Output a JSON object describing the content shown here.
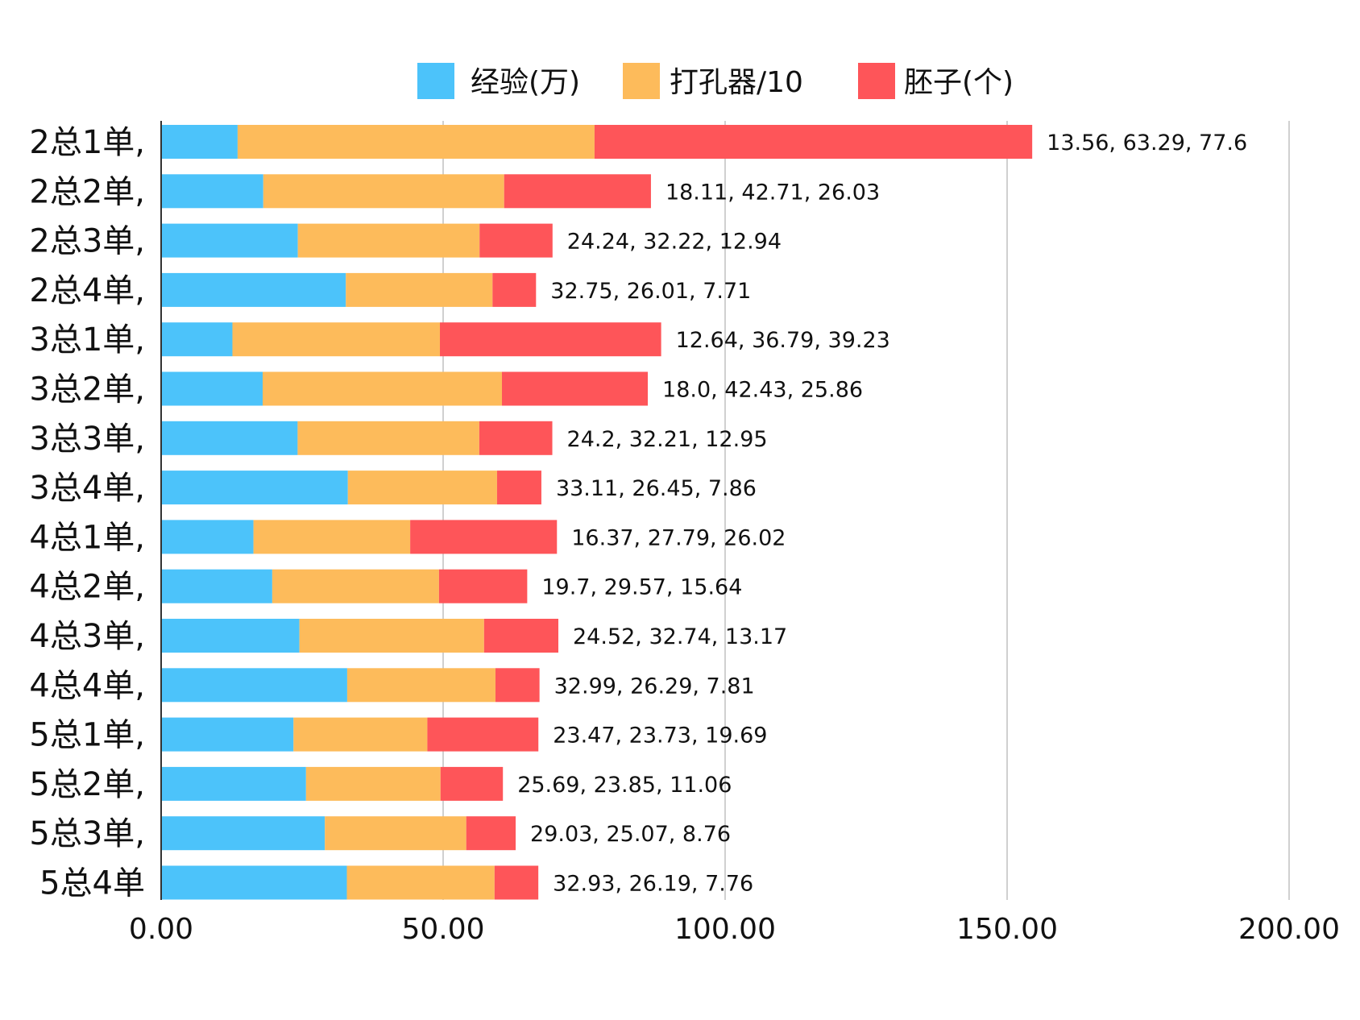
{
  "chart_data": {
    "type": "bar",
    "orientation": "horizontal",
    "stacked": true,
    "title": "",
    "xlabel": "",
    "ylabel": "",
    "xlim": [
      0,
      200
    ],
    "xticks": [
      0,
      50,
      100,
      150,
      200
    ],
    "xtick_labels": [
      "0.00",
      "50.00",
      "100.00",
      "150.00",
      "200.00"
    ],
    "grid": true,
    "legend_position": "top",
    "categories": [
      "2总1单,",
      "2总2单,",
      "2总3单,",
      "2总4单,",
      "3总1单,",
      "3总2单,",
      "3总3单,",
      "3总4单,",
      "4总1单,",
      "4总2单,",
      "4总3单,",
      "4总4单,",
      "5总1单,",
      "5总2单,",
      "5总3单,",
      "5总4单"
    ],
    "series": [
      {
        "name": "经验(万)",
        "color": "#4cc3fa",
        "values": [
          13.56,
          18.11,
          24.24,
          32.75,
          12.64,
          18.0,
          24.2,
          33.11,
          16.37,
          19.7,
          24.52,
          32.99,
          23.47,
          25.69,
          29.03,
          32.93
        ]
      },
      {
        "name": "打孔器/10",
        "color": "#fdbb5b",
        "values": [
          63.29,
          42.71,
          32.22,
          26.01,
          36.79,
          42.43,
          32.21,
          26.45,
          27.79,
          29.57,
          32.74,
          26.29,
          23.73,
          23.85,
          25.07,
          26.19
        ]
      },
      {
        "name": "胚子(个)",
        "color": "#fe5559",
        "values": [
          77.6,
          26.03,
          12.94,
          7.71,
          39.23,
          25.86,
          12.95,
          7.86,
          26.02,
          15.64,
          13.17,
          7.81,
          19.69,
          11.06,
          8.76,
          7.76
        ]
      }
    ],
    "data_labels": [
      "13.56, 63.29, 77.6",
      "18.11, 42.71, 26.03",
      "24.24, 32.22, 12.94",
      "32.75, 26.01, 7.71",
      "12.64, 36.79, 39.23",
      "18.0, 42.43, 25.86",
      "24.2, 32.21, 12.95",
      "33.11, 26.45, 7.86",
      "16.37, 27.79, 26.02",
      "19.7, 29.57, 15.64",
      "24.52, 32.74, 13.17",
      "32.99, 26.29, 7.81",
      "23.47, 23.73, 19.69",
      "25.69, 23.85, 11.06",
      "29.03, 25.07, 8.76",
      "32.93, 26.19, 7.76"
    ]
  }
}
